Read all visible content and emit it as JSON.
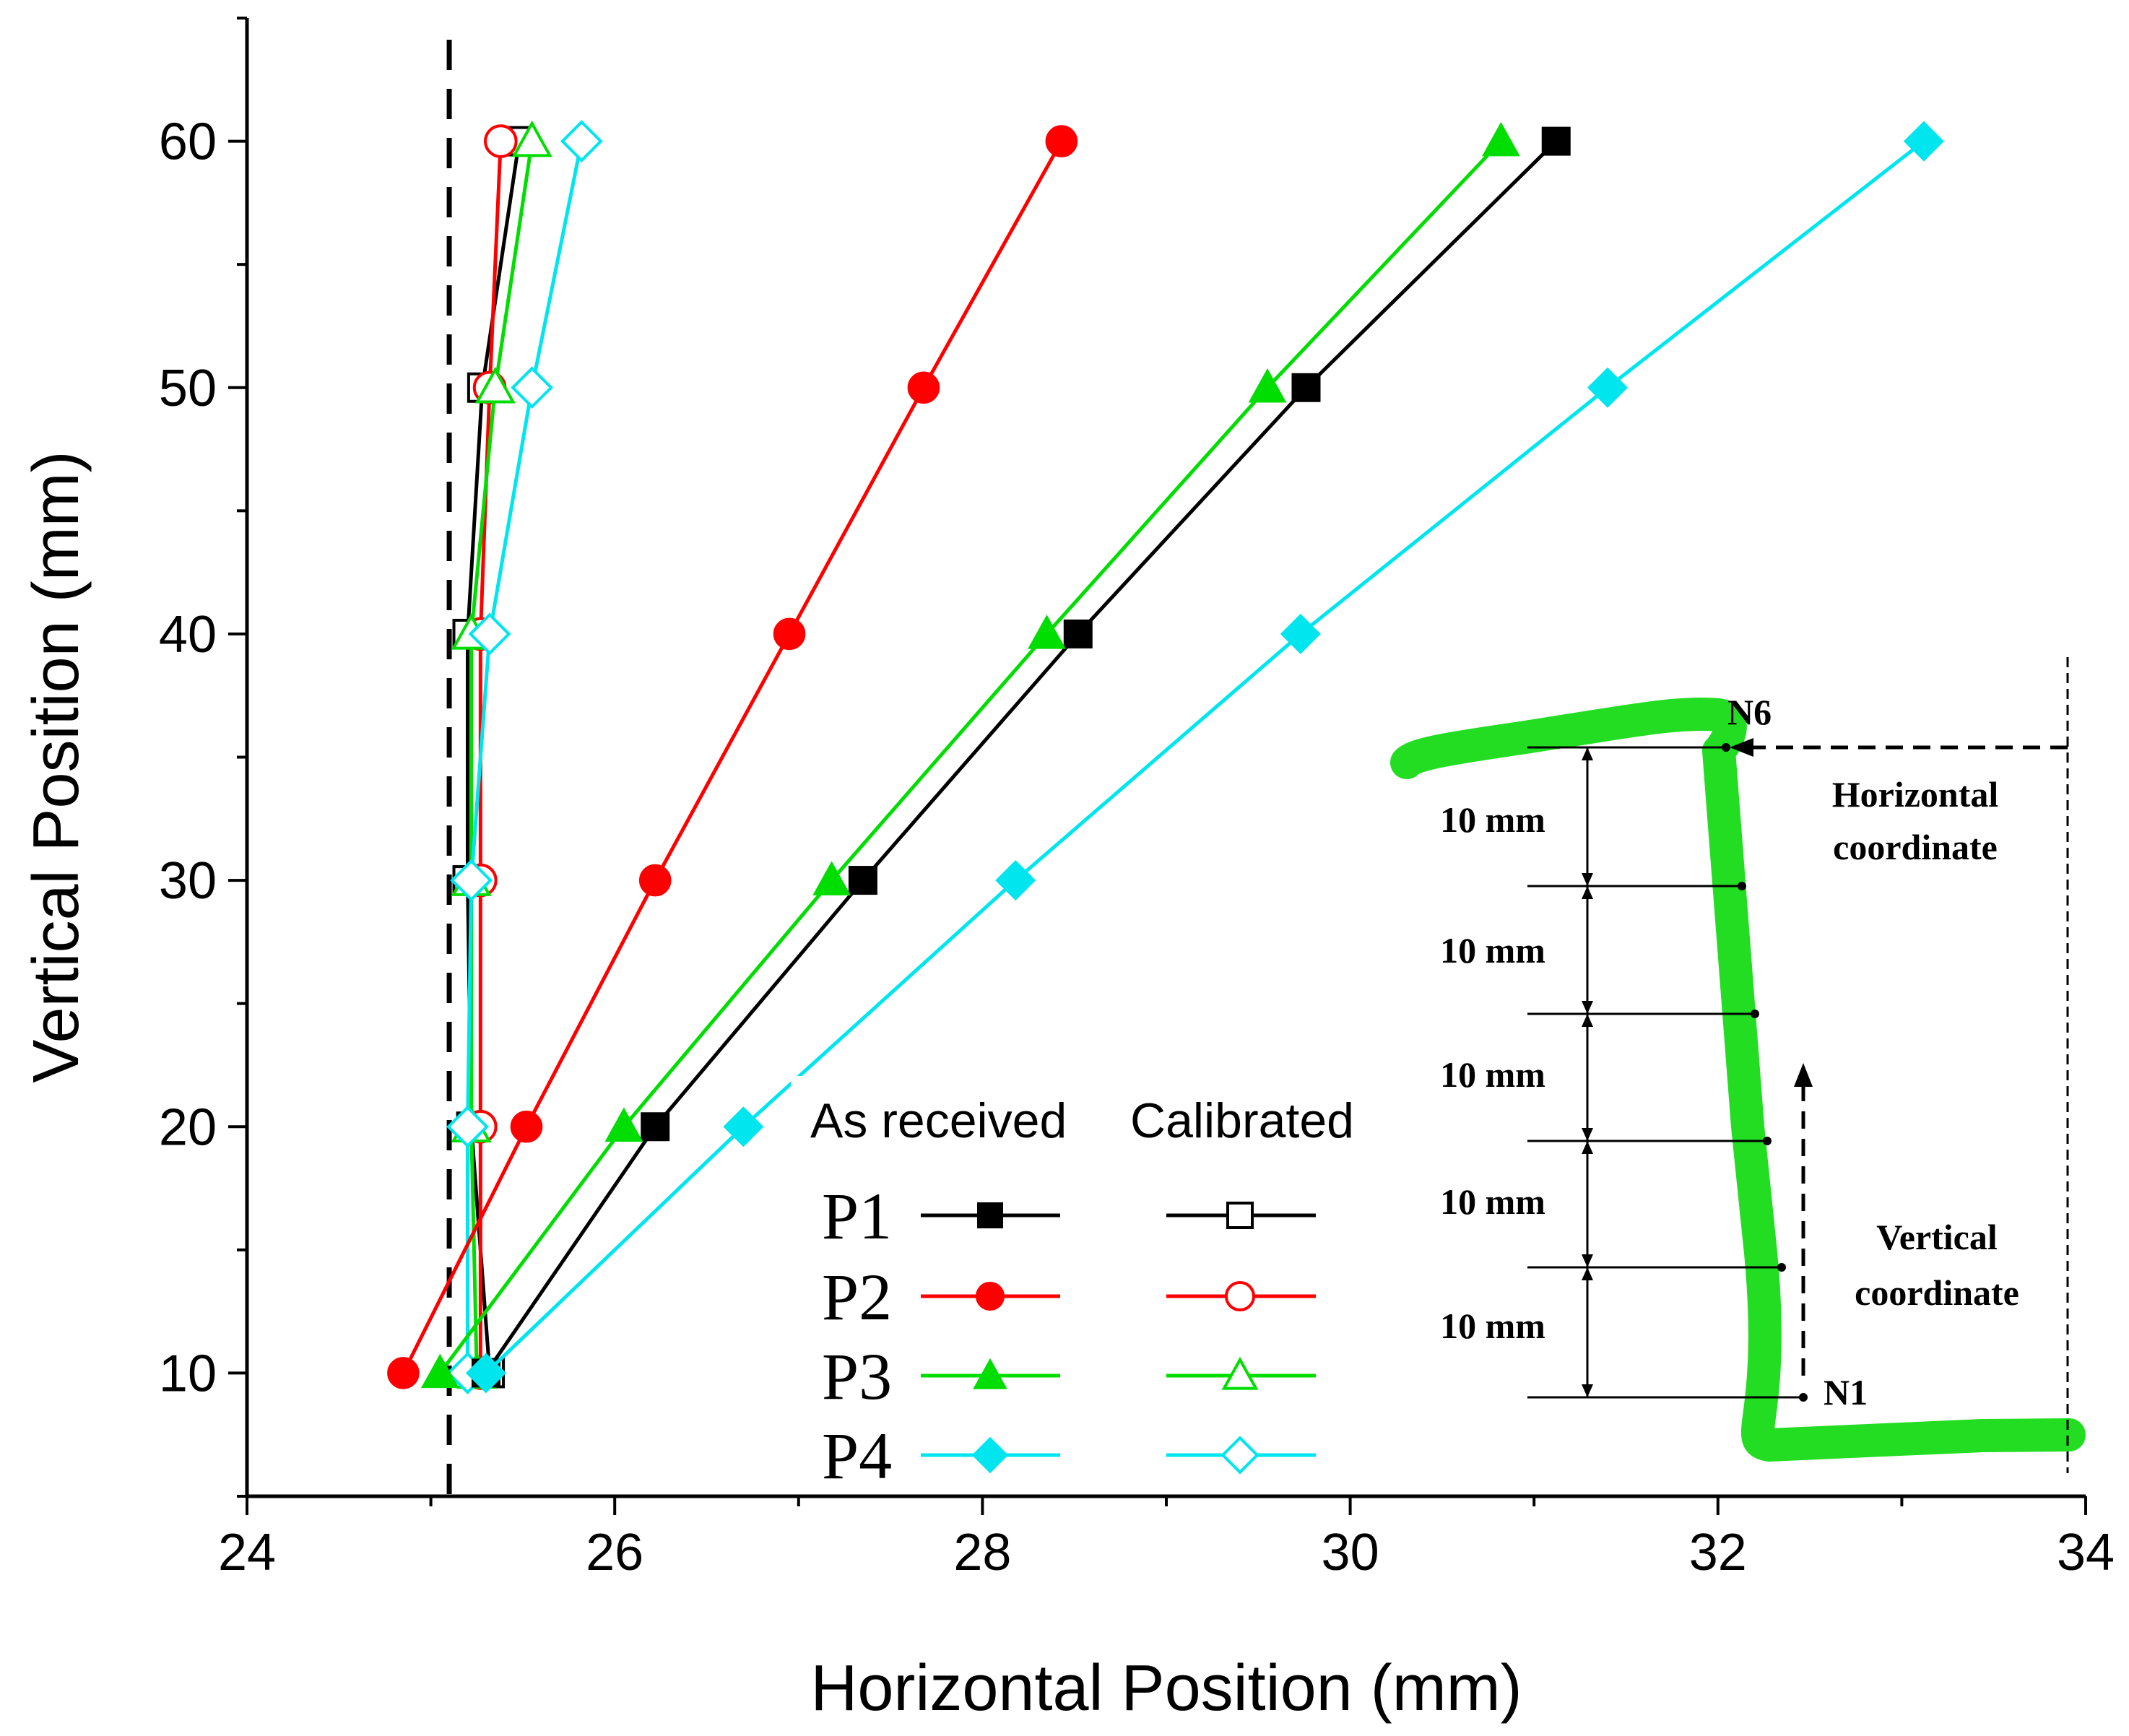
{
  "chart_data": {
    "type": "line",
    "title": "",
    "xlabel": "Horizontal Position (mm)",
    "ylabel": "Vertical Position (mm)",
    "xlim": [
      24,
      34
    ],
    "ylim": [
      5,
      65
    ],
    "xticks": [
      24,
      26,
      28,
      30,
      32,
      34
    ],
    "yticks": [
      10,
      20,
      30,
      40,
      50,
      60
    ],
    "y": [
      10,
      20,
      30,
      40,
      50,
      60
    ],
    "reference_line_x": 25.1,
    "legend": {
      "group_as_received": "As received",
      "group_calibrated": "Calibrated",
      "position": "bottom-center"
    },
    "series": [
      {
        "name": "P1",
        "group": "As received",
        "color": "#000000",
        "marker": "square",
        "filled": true,
        "x": [
          25.3,
          26.22,
          27.35,
          28.52,
          29.76,
          31.12
        ]
      },
      {
        "name": "P2",
        "group": "As received",
        "color": "#ff0000",
        "marker": "circle",
        "filled": true,
        "x": [
          24.85,
          25.52,
          26.22,
          26.95,
          27.68,
          28.43
        ]
      },
      {
        "name": "P3",
        "group": "As received",
        "color": "#00dd00",
        "marker": "triangle",
        "filled": true,
        "x": [
          25.05,
          26.05,
          27.18,
          28.35,
          29.55,
          30.82
        ]
      },
      {
        "name": "P4",
        "group": "As received",
        "color": "#00e5ee",
        "marker": "diamond",
        "filled": true,
        "x": [
          25.3,
          26.7,
          28.18,
          29.73,
          31.4,
          33.12
        ]
      },
      {
        "name": "P1",
        "group": "Calibrated",
        "color": "#000000",
        "marker": "square",
        "filled": false,
        "x": [
          25.32,
          25.22,
          25.2,
          25.2,
          25.28,
          25.48
        ]
      },
      {
        "name": "P2",
        "group": "Calibrated",
        "color": "#ff0000",
        "marker": "circle",
        "filled": false,
        "x": [
          25.27,
          25.27,
          25.27,
          25.27,
          25.32,
          25.38
        ]
      },
      {
        "name": "P3",
        "group": "Calibrated",
        "color": "#00dd00",
        "marker": "triangle",
        "filled": false,
        "x": [
          25.25,
          25.22,
          25.22,
          25.22,
          25.35,
          25.55
        ]
      },
      {
        "name": "P4",
        "group": "Calibrated",
        "color": "#00e5ee",
        "marker": "diamond",
        "filled": false,
        "x": [
          25.2,
          25.2,
          25.22,
          25.32,
          25.55,
          25.82
        ]
      }
    ],
    "inset": {
      "top_label": "N6",
      "bottom_label": "N1",
      "horizontal_label": [
        "Horizontal",
        "coordinate"
      ],
      "vertical_label": [
        "Vertical",
        "coordinate"
      ],
      "spacing_labels": [
        "10 mm",
        "10 mm",
        "10 mm",
        "10 mm",
        "10 mm"
      ],
      "shape_color": "#22dd22"
    }
  }
}
